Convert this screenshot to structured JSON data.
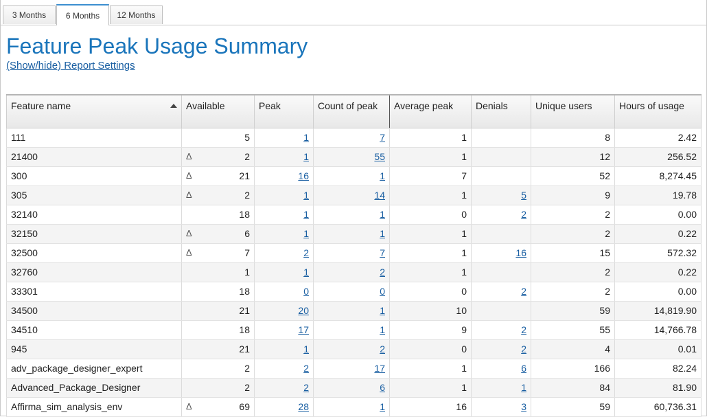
{
  "tabs": [
    "3 Months",
    "6 Months",
    "12 Months"
  ],
  "active_tab": 1,
  "title": "Feature Peak Usage Summary",
  "settings_link": "(Show/hide) Report Settings",
  "columns": [
    "Feature name",
    "Available",
    "Peak",
    "Count of peak",
    "Average peak",
    "Denials",
    "Unique users",
    "Hours of usage"
  ],
  "delta_symbol": "Δ",
  "rows": [
    {
      "name": "111",
      "delta": false,
      "available": "5",
      "peak": "1",
      "count": "7",
      "avg": "1",
      "denials": "",
      "users": "8",
      "hours": "2.42"
    },
    {
      "name": "21400",
      "delta": true,
      "available": "2",
      "peak": "1",
      "count": "55",
      "avg": "1",
      "denials": "",
      "users": "12",
      "hours": "256.52"
    },
    {
      "name": "300",
      "delta": true,
      "available": "21",
      "peak": "16",
      "count": "1",
      "avg": "7",
      "denials": "",
      "users": "52",
      "hours": "8,274.45"
    },
    {
      "name": "305",
      "delta": true,
      "available": "2",
      "peak": "1",
      "count": "14",
      "avg": "1",
      "denials": "5",
      "users": "9",
      "hours": "19.78"
    },
    {
      "name": "32140",
      "delta": false,
      "available": "18",
      "peak": "1",
      "count": "1",
      "avg": "0",
      "denials": "2",
      "users": "2",
      "hours": "0.00"
    },
    {
      "name": "32150",
      "delta": true,
      "available": "6",
      "peak": "1",
      "count": "1",
      "avg": "1",
      "denials": "",
      "users": "2",
      "hours": "0.22"
    },
    {
      "name": "32500",
      "delta": true,
      "available": "7",
      "peak": "2",
      "count": "7",
      "avg": "1",
      "denials": "16",
      "users": "15",
      "hours": "572.32"
    },
    {
      "name": "32760",
      "delta": false,
      "available": "1",
      "peak": "1",
      "count": "2",
      "avg": "1",
      "denials": "",
      "users": "2",
      "hours": "0.22"
    },
    {
      "name": "33301",
      "delta": false,
      "available": "18",
      "peak": "0",
      "count": "0",
      "avg": "0",
      "denials": "2",
      "users": "2",
      "hours": "0.00"
    },
    {
      "name": "34500",
      "delta": false,
      "available": "21",
      "peak": "20",
      "count": "1",
      "avg": "10",
      "denials": "",
      "users": "59",
      "hours": "14,819.90"
    },
    {
      "name": "34510",
      "delta": false,
      "available": "18",
      "peak": "17",
      "count": "1",
      "avg": "9",
      "denials": "2",
      "users": "55",
      "hours": "14,766.78"
    },
    {
      "name": "945",
      "delta": false,
      "available": "21",
      "peak": "1",
      "count": "2",
      "avg": "0",
      "denials": "2",
      "users": "4",
      "hours": "0.01"
    },
    {
      "name": "adv_package_designer_expert",
      "delta": false,
      "available": "2",
      "peak": "2",
      "count": "17",
      "avg": "1",
      "denials": "6",
      "users": "166",
      "hours": "82.24"
    },
    {
      "name": "Advanced_Package_Designer",
      "delta": false,
      "available": "2",
      "peak": "2",
      "count": "6",
      "avg": "1",
      "denials": "1",
      "users": "84",
      "hours": "81.90"
    },
    {
      "name": "Affirma_sim_analysis_env",
      "delta": true,
      "available": "69",
      "peak": "28",
      "count": "1",
      "avg": "16",
      "denials": "3",
      "users": "59",
      "hours": "60,736.31"
    }
  ]
}
